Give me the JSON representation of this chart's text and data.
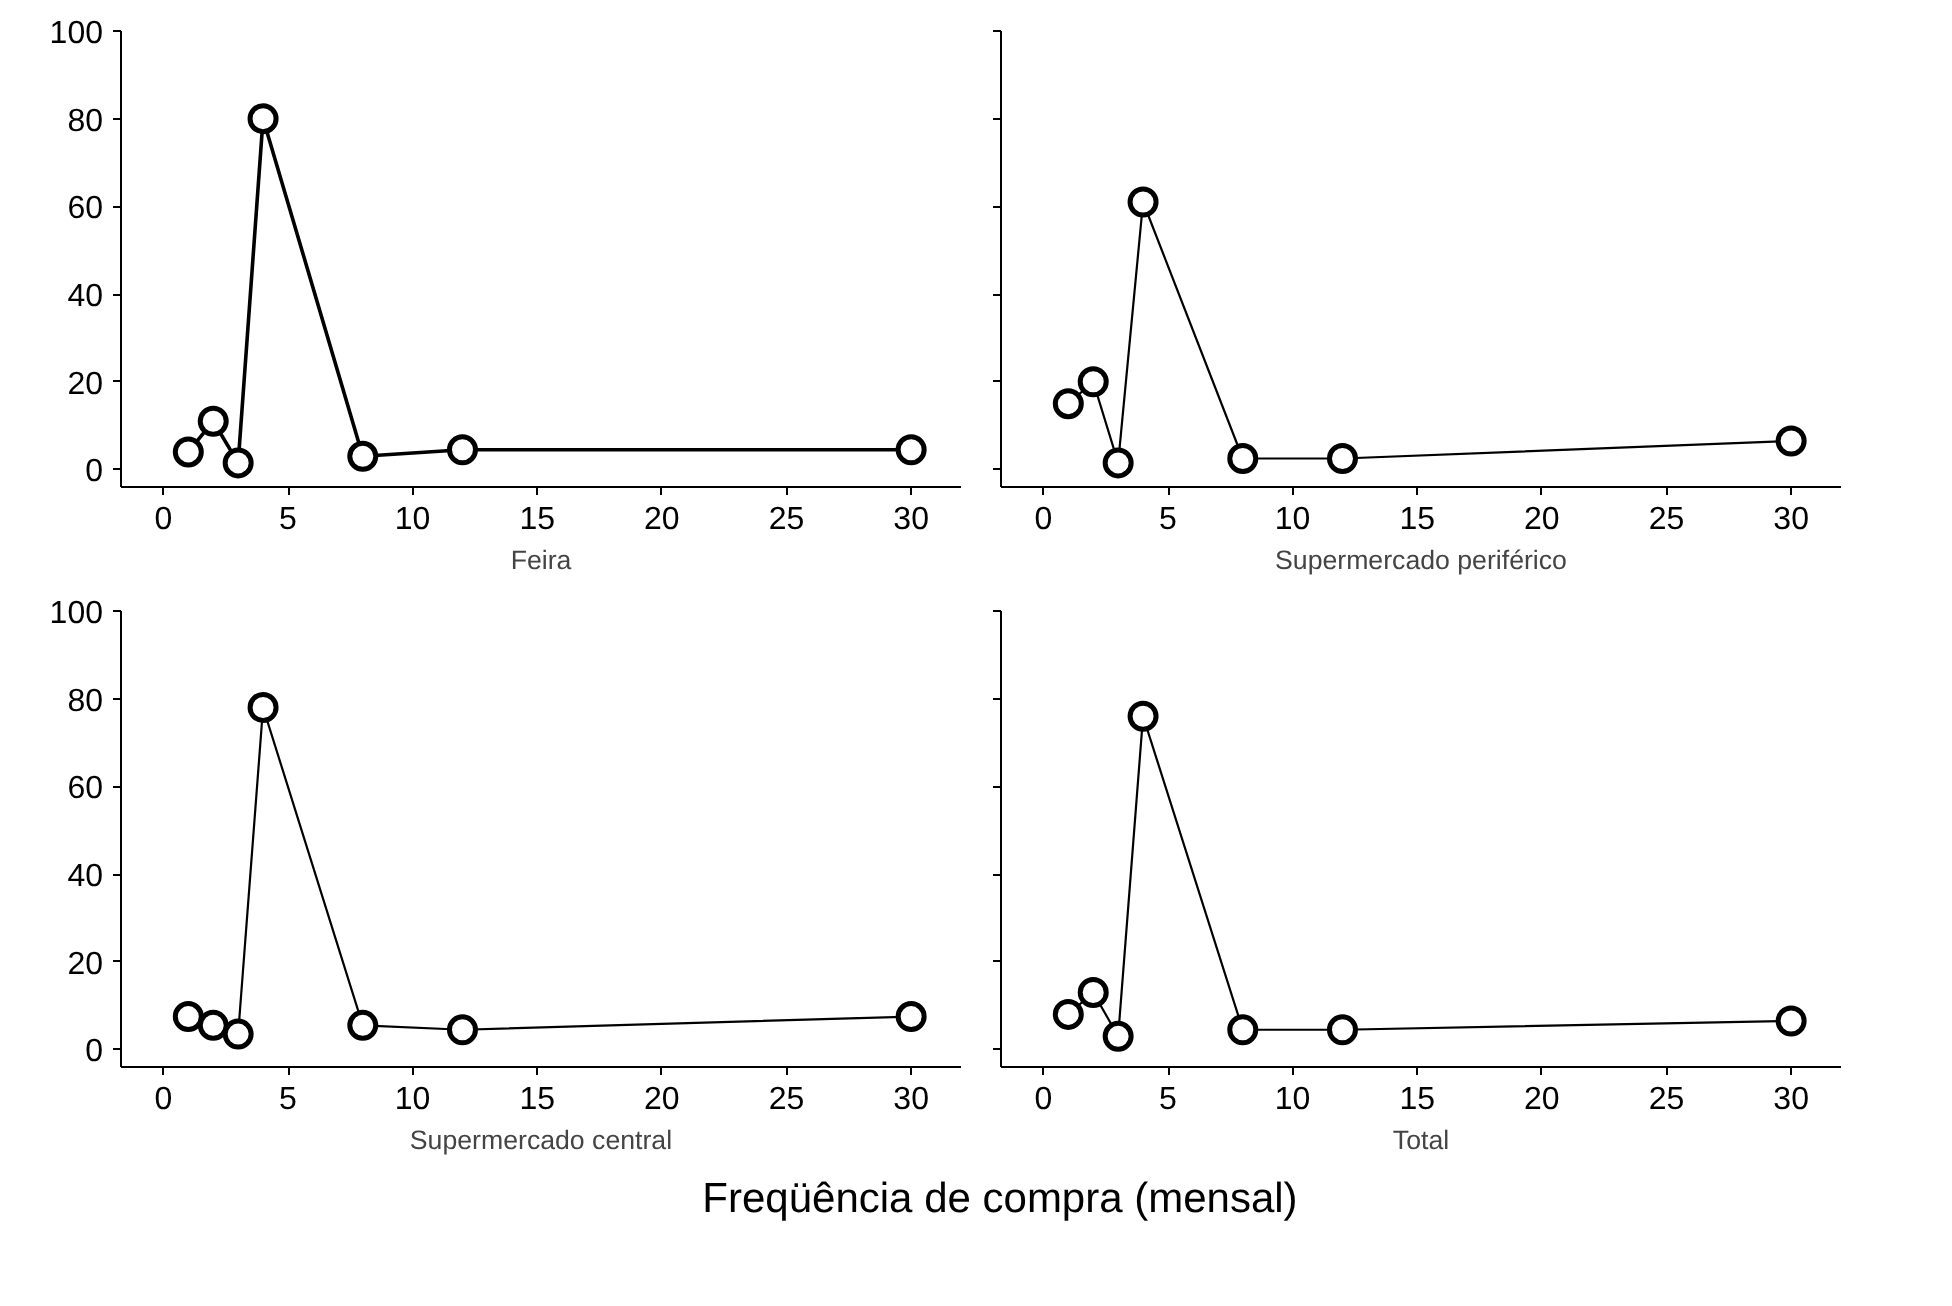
{
  "chart_data": [
    {
      "type": "line",
      "xlabel": "Feira",
      "x": [
        1,
        2,
        3,
        4,
        8,
        12,
        30
      ],
      "values": [
        4,
        11,
        1.5,
        80,
        3,
        4.5,
        4.5
      ],
      "color": "#000000",
      "marker": "circle",
      "line_style": "solid",
      "xlim": [
        -1.7,
        32
      ],
      "ylim": [
        -4,
        100
      ],
      "xticks": [
        0,
        5,
        10,
        15,
        20,
        25,
        30
      ],
      "yticks": [
        0,
        20,
        40,
        60,
        80,
        100
      ],
      "grid": false
    },
    {
      "type": "line",
      "xlabel": "Supermercado periférico",
      "x": [
        1,
        2,
        3,
        4,
        8,
        12,
        30
      ],
      "values": [
        15,
        20,
        1.5,
        61,
        2.5,
        2.5,
        6.5
      ],
      "color": "#000000",
      "marker": "circle",
      "line_style": "solid",
      "xlim": [
        -1.7,
        32
      ],
      "ylim": [
        -4,
        100
      ],
      "xticks": [
        0,
        5,
        10,
        15,
        20,
        25,
        30
      ],
      "yticks": [
        0,
        20,
        40,
        60,
        80,
        100
      ],
      "tick_labels": "x",
      "grid": false
    },
    {
      "type": "line",
      "xlabel": "Supermercado central",
      "x": [
        1,
        2,
        3,
        4,
        8,
        12,
        30
      ],
      "values": [
        7.5,
        5.5,
        3.5,
        78,
        5.5,
        4.5,
        7.5
      ],
      "color": "#000000",
      "marker": "circle",
      "line_style": "solid",
      "xlim": [
        -1.7,
        32
      ],
      "ylim": [
        -4,
        100
      ],
      "xticks": [
        0,
        5,
        10,
        15,
        20,
        25,
        30
      ],
      "yticks": [
        0,
        20,
        40,
        60,
        80,
        100
      ],
      "grid": false,
      "annotations": [
        "Freqüência de compra (mensal)"
      ]
    },
    {
      "type": "line",
      "xlabel": "Total",
      "x": [
        1,
        2,
        3,
        4,
        8,
        12,
        30
      ],
      "values": [
        8,
        13,
        3,
        76,
        4.5,
        4.5,
        6.5
      ],
      "color": "#000000",
      "marker": "circle",
      "line_style": "solid",
      "xlim": [
        -1.7,
        32
      ],
      "ylim": [
        -4,
        100
      ],
      "xticks": [
        0,
        5,
        10,
        15,
        20,
        25,
        30
      ],
      "yticks": [
        0,
        20,
        40,
        60,
        80,
        100
      ],
      "tick_labels": "x",
      "grid": false
    }
  ]
}
